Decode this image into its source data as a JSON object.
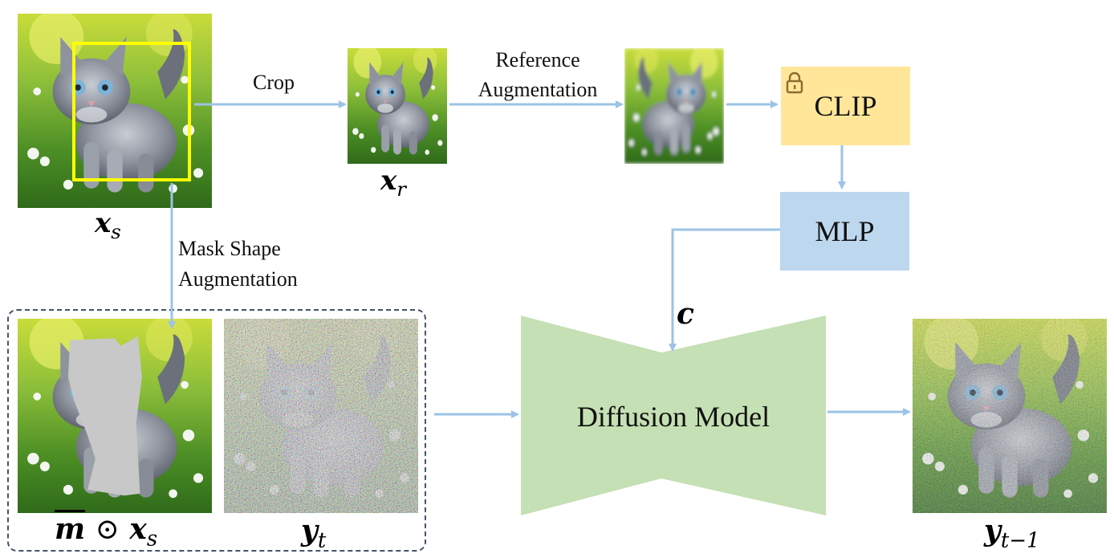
{
  "labels": {
    "crop": "Crop",
    "ref_aug_line1": "Reference",
    "ref_aug_line2": "Augmentation",
    "mask_aug_line1": "Mask Shape",
    "mask_aug_line2": "Augmentation"
  },
  "math": {
    "xs_main": "x",
    "xs_sub": "s",
    "xr_main": "x",
    "xr_sub": "r",
    "c": "c",
    "masked_m": "m",
    "masked_odot": "⊙",
    "masked_x": "x",
    "masked_sub": "s",
    "yt_main": "y",
    "yt_sub": "t",
    "ytm1_main": "y",
    "ytm1_sub": "t−1"
  },
  "boxes": {
    "clip": "CLIP",
    "mlp": "MLP",
    "diffusion": "Diffusion Model"
  },
  "icons": {
    "lock": "lock-icon"
  },
  "colors": {
    "arrow": "#9dc3e6",
    "clip_fill": "#ffe699",
    "mlp_fill": "#bdd7ee",
    "diffusion_fill": "#c5e0b4",
    "crop_box": "#ffff00",
    "dashed_border": "#44546a",
    "mask_gray": "#c8c8c8"
  }
}
